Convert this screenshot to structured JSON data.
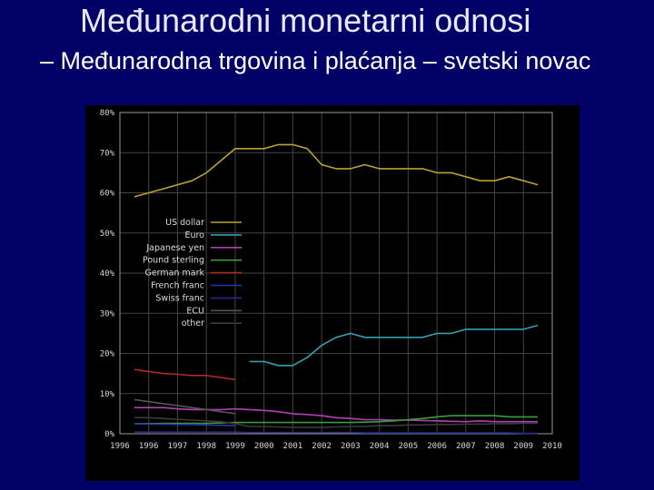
{
  "slide": {
    "title": "Međunarodni monetarni odnosi",
    "subtitle": "– Međunarodna trgovina i plaćanja – svetski novac"
  },
  "chart_data": {
    "type": "line",
    "x": [
      1995.5,
      1996.0,
      1996.5,
      1997.0,
      1997.5,
      1998.0,
      1998.5,
      1999.0,
      1999.5,
      2000.0,
      2000.5,
      2001.0,
      2001.5,
      2002.0,
      2002.5,
      2003.0,
      2003.5,
      2004.0,
      2004.5,
      2005.0,
      2005.5,
      2006.0,
      2006.5,
      2007.0,
      2007.5,
      2008.0,
      2008.5,
      2009.0,
      2009.5
    ],
    "xticks": [
      "1996",
      "1996",
      "1997",
      "1998",
      "1999",
      "2000",
      "2001",
      "2002",
      "2003",
      "2004",
      "2005",
      "2006",
      "2007",
      "2008",
      "2009",
      "2010"
    ],
    "xlim": [
      1995,
      2010
    ],
    "ylim": [
      0,
      80
    ],
    "yticks": [
      0,
      10,
      20,
      30,
      40,
      50,
      60,
      70,
      80
    ],
    "ytick_suffix": "%",
    "grid": true,
    "legend_position": "middle-left",
    "colors": {
      "background": "#000000",
      "grid": "#444444",
      "ticks": "#d8d8d8",
      "axis": "#9a9a9a"
    },
    "series": [
      {
        "name": "US dollar",
        "color": "#b9a230",
        "values": [
          59,
          60,
          61,
          62,
          63,
          65,
          68,
          71,
          71,
          71,
          72,
          72,
          71,
          67,
          66,
          66,
          67,
          66,
          66,
          66,
          66,
          65,
          65,
          64,
          63,
          63,
          64,
          63,
          62
        ]
      },
      {
        "name": "Euro",
        "color": "#33a0b0",
        "values": [
          null,
          null,
          null,
          null,
          null,
          null,
          null,
          null,
          18,
          18,
          17,
          17,
          19,
          22,
          24,
          25,
          24,
          24,
          24,
          24,
          24,
          25,
          25,
          26,
          26,
          26,
          26,
          26,
          27
        ]
      },
      {
        "name": "Japanese yen",
        "color": "#b040b8",
        "values": [
          6.5,
          6.5,
          6.5,
          6.2,
          6.0,
          6.0,
          6.0,
          6.2,
          6.0,
          5.8,
          5.5,
          5.0,
          4.8,
          4.5,
          4.0,
          3.8,
          3.5,
          3.5,
          3.4,
          3.4,
          3.3,
          3.2,
          3.1,
          3.0,
          3.2,
          3.0,
          3.0,
          3.0,
          3.0
        ]
      },
      {
        "name": "Pound sterling",
        "color": "#3d9a3d",
        "values": [
          2.5,
          2.5,
          2.6,
          2.6,
          2.6,
          2.6,
          2.7,
          2.8,
          2.8,
          2.8,
          2.8,
          2.8,
          2.8,
          2.8,
          2.8,
          2.8,
          2.9,
          3.0,
          3.2,
          3.5,
          3.8,
          4.2,
          4.5,
          4.5,
          4.5,
          4.5,
          4.2,
          4.2,
          4.2
        ]
      },
      {
        "name": "German mark",
        "color": "#b02828",
        "values": [
          16,
          15.5,
          15,
          14.8,
          14.5,
          14.5,
          14,
          13.5,
          null,
          null,
          null,
          null,
          null,
          null,
          null,
          null,
          null,
          null,
          null,
          null,
          null,
          null,
          null,
          null,
          null,
          null,
          null,
          null,
          null
        ]
      },
      {
        "name": "French franc",
        "color": "#2838a8",
        "values": [
          2.5,
          2.4,
          2.4,
          2.3,
          2.3,
          2.2,
          2.1,
          2.0,
          null,
          null,
          null,
          null,
          null,
          null,
          null,
          null,
          null,
          null,
          null,
          null,
          null,
          null,
          null,
          null,
          null,
          null,
          null,
          null,
          null
        ]
      },
      {
        "name": "Swiss franc",
        "color": "#2a2a88",
        "values": [
          0.4,
          0.4,
          0.4,
          0.4,
          0.4,
          0.4,
          0.4,
          0.4,
          0.3,
          0.3,
          0.3,
          0.3,
          0.3,
          0.3,
          0.3,
          0.3,
          0.2,
          0.2,
          0.2,
          0.2,
          0.2,
          0.2,
          0.2,
          0.2,
          0.2,
          0.2,
          0.2,
          0.1,
          0.1
        ]
      },
      {
        "name": "ECU",
        "color": "#555555",
        "values": [
          8.5,
          8.0,
          7.5,
          7.0,
          6.5,
          6.0,
          5.5,
          5.0,
          null,
          null,
          null,
          null,
          null,
          null,
          null,
          null,
          null,
          null,
          null,
          null,
          null,
          null,
          null,
          null,
          null,
          null,
          null,
          null,
          null
        ]
      },
      {
        "name": "other",
        "color": "#3a3a3a",
        "values": [
          4.0,
          4.0,
          3.8,
          3.6,
          3.4,
          3.2,
          3.0,
          2.5,
          1.8,
          1.8,
          1.7,
          1.6,
          1.6,
          1.6,
          1.7,
          1.8,
          1.8,
          2.0,
          2.0,
          2.2,
          2.2,
          2.3,
          2.3,
          2.4,
          2.4,
          2.5,
          2.5,
          2.6,
          2.6
        ]
      }
    ]
  }
}
